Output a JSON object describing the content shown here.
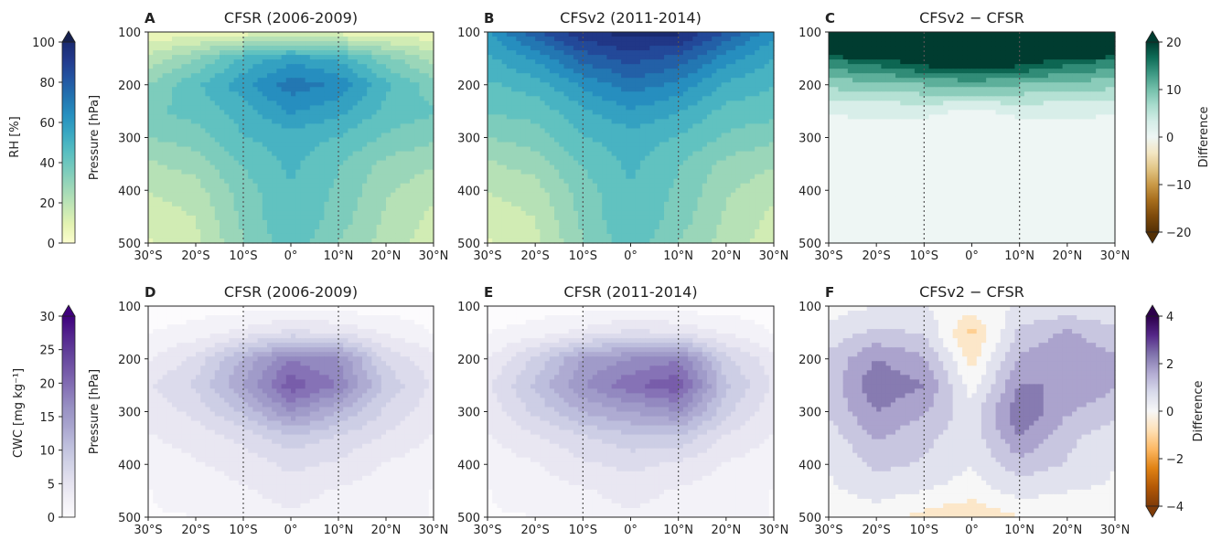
{
  "colors": {
    "rh": [
      "#fbfdce",
      "#e4f3b2",
      "#c2e6b5",
      "#9fd8b8",
      "#7acbbc",
      "#57bec1",
      "#39a8c2",
      "#2690c0",
      "#2273b0",
      "#2355a2",
      "#233a8d",
      "#1a2b70"
    ],
    "cwc": [
      "#fcfbfd",
      "#f1eff6",
      "#e3e1ef",
      "#d0d1e6",
      "#bcbddc",
      "#a8a4ce",
      "#9891c3",
      "#8774b7",
      "#7559a8",
      "#62409a",
      "#52238d",
      "#3f007d"
    ],
    "rh_diff": [
      "#543005",
      "#7d4a0b",
      "#a66d1c",
      "#c99947",
      "#e2c585",
      "#f3e6c3",
      "#eef6f4",
      "#d4ede7",
      "#a9dccd",
      "#75c0ab",
      "#3e9984",
      "#0f6d58",
      "#003c30"
    ],
    "cwc_diff": [
      "#7f3b08",
      "#b35806",
      "#e08214",
      "#fdb863",
      "#fee0b6",
      "#f7f7f7",
      "#d8daeb",
      "#b2abd2",
      "#8073ac",
      "#542788",
      "#2d004b"
    ]
  },
  "chart_data": [
    {
      "panel": "A",
      "type": "contour",
      "title": "CFSR (2006-2009)",
      "xlabel": "",
      "ylabel": "Pressure [hPa]",
      "x_ticks": [
        "30°S",
        "20°S",
        "10°S",
        "0°",
        "10°N",
        "20°N",
        "30°N"
      ],
      "y_ticks": [
        "100",
        "200",
        "300",
        "400",
        "500"
      ],
      "xlim": [
        -30,
        30
      ],
      "ylim": [
        500,
        100
      ],
      "levels": [
        0,
        100
      ],
      "cmap": "rh",
      "field": {
        "lats": [
          -30,
          -20,
          -10,
          0,
          10,
          20,
          30
        ],
        "pressures": [
          100,
          150,
          200,
          250,
          300,
          350,
          400,
          450,
          500
        ],
        "values": [
          [
            5,
            6,
            7,
            8,
            7,
            6,
            5
          ],
          [
            20,
            32,
            48,
            58,
            52,
            35,
            22
          ],
          [
            32,
            45,
            58,
            72,
            66,
            48,
            35
          ],
          [
            38,
            42,
            50,
            62,
            56,
            44,
            40
          ],
          [
            32,
            36,
            46,
            50,
            46,
            38,
            34
          ],
          [
            24,
            28,
            40,
            48,
            40,
            30,
            26
          ],
          [
            18,
            22,
            36,
            46,
            38,
            26,
            20
          ],
          [
            14,
            18,
            34,
            46,
            36,
            24,
            16
          ],
          [
            10,
            16,
            32,
            44,
            32,
            22,
            14
          ]
        ]
      }
    },
    {
      "panel": "B",
      "type": "contour",
      "title": "CFSv2 (2011-2014)",
      "xlabel": "",
      "ylabel": "",
      "x_ticks": [
        "30°S",
        "20°S",
        "10°S",
        "0°",
        "10°N",
        "20°N",
        "30°N"
      ],
      "y_ticks": [
        "100",
        "200",
        "300",
        "400",
        "500"
      ],
      "xlim": [
        -30,
        30
      ],
      "ylim": [
        500,
        100
      ],
      "levels": [
        0,
        100
      ],
      "cmap": "rh",
      "field": {
        "lats": [
          -30,
          -20,
          -10,
          0,
          10,
          20,
          30
        ],
        "pressures": [
          100,
          150,
          200,
          250,
          300,
          350,
          400,
          450,
          500
        ],
        "values": [
          [
            60,
            80,
            95,
            100,
            98,
            82,
            62
          ],
          [
            52,
            62,
            78,
            85,
            80,
            64,
            54
          ],
          [
            45,
            50,
            62,
            72,
            66,
            52,
            47
          ],
          [
            40,
            42,
            52,
            60,
            54,
            44,
            42
          ],
          [
            32,
            36,
            46,
            50,
            46,
            38,
            34
          ],
          [
            24,
            28,
            40,
            48,
            40,
            30,
            26
          ],
          [
            18,
            22,
            36,
            46,
            38,
            26,
            20
          ],
          [
            14,
            18,
            34,
            46,
            36,
            24,
            16
          ],
          [
            10,
            16,
            32,
            44,
            32,
            22,
            14
          ]
        ]
      }
    },
    {
      "panel": "C",
      "type": "contour",
      "title": "CFSv2 − CFSR",
      "xlabel": "",
      "ylabel": "",
      "x_ticks": [
        "30°S",
        "20°S",
        "10°S",
        "0°",
        "10°N",
        "20°N",
        "30°N"
      ],
      "y_ticks": [
        "100",
        "200",
        "300",
        "400",
        "500"
      ],
      "xlim": [
        -30,
        30
      ],
      "ylim": [
        500,
        100
      ],
      "levels": [
        -20,
        20
      ],
      "cmap": "rh_diff",
      "colorbar_label": "Difference",
      "colorbar_ticks": [
        "20",
        "10",
        "0",
        "−10",
        "−20"
      ],
      "field": {
        "lats": [
          -30,
          -20,
          -10,
          0,
          10,
          20,
          30
        ],
        "pressures": [
          100,
          150,
          200,
          250,
          300,
          350,
          400,
          450,
          500
        ],
        "values": [
          [
            60,
            70,
            80,
            85,
            82,
            72,
            62
          ],
          [
            16,
            18,
            22,
            24,
            22,
            18,
            16
          ],
          [
            8,
            9,
            10,
            11,
            10,
            9,
            8
          ],
          [
            2,
            2,
            2,
            1,
            2,
            2,
            2
          ],
          [
            -1,
            0,
            0,
            -1,
            0,
            0,
            -1
          ],
          [
            0,
            0,
            0,
            0,
            0,
            0,
            0
          ],
          [
            0,
            0,
            0,
            0,
            0,
            0,
            0
          ],
          [
            0,
            0,
            0,
            0,
            0,
            0,
            0
          ],
          [
            0,
            0,
            0,
            -1,
            0,
            0,
            0
          ]
        ]
      }
    },
    {
      "panel": "D",
      "type": "contour",
      "title": "CFSR (2006-2009)",
      "xlabel": "",
      "ylabel": "Pressure [hPa]",
      "x_ticks": [
        "30°S",
        "20°S",
        "10°S",
        "0°",
        "10°N",
        "20°N",
        "30°N"
      ],
      "y_ticks": [
        "100",
        "200",
        "300",
        "400",
        "500"
      ],
      "xlim": [
        -30,
        30
      ],
      "ylim": [
        500,
        100
      ],
      "levels": [
        0,
        30
      ],
      "cmap": "cwc",
      "field": {
        "lats": [
          -30,
          -20,
          -10,
          0,
          10,
          20,
          30
        ],
        "pressures": [
          100,
          150,
          200,
          250,
          300,
          350,
          400,
          450,
          500
        ],
        "values": [
          [
            0,
            0,
            0,
            0.5,
            0,
            0,
            0
          ],
          [
            1,
            2,
            4,
            6,
            5,
            3,
            1
          ],
          [
            3,
            6,
            12,
            18,
            16,
            7,
            4
          ],
          [
            5,
            8,
            14,
            22,
            18,
            9,
            5
          ],
          [
            4,
            6,
            10,
            16,
            12,
            7,
            4
          ],
          [
            3,
            4,
            6,
            9,
            7,
            5,
            3
          ],
          [
            2,
            3,
            4,
            6,
            5,
            3,
            2
          ],
          [
            1,
            2,
            3,
            4,
            3,
            2,
            1
          ],
          [
            1,
            1,
            2,
            3,
            2,
            2,
            1
          ]
        ]
      }
    },
    {
      "panel": "E",
      "type": "contour",
      "title": "CFSR (2011-2014)",
      "xlabel": "",
      "ylabel": "",
      "x_ticks": [
        "30°S",
        "20°S",
        "10°S",
        "0°",
        "10°N",
        "20°N",
        "30°N"
      ],
      "y_ticks": [
        "100",
        "200",
        "300",
        "400",
        "500"
      ],
      "xlim": [
        -30,
        30
      ],
      "ylim": [
        500,
        100
      ],
      "levels": [
        0,
        30
      ],
      "cmap": "cwc",
      "field": {
        "lats": [
          -30,
          -20,
          -10,
          0,
          10,
          20,
          30
        ],
        "pressures": [
          100,
          150,
          200,
          250,
          300,
          350,
          400,
          450,
          500
        ],
        "values": [
          [
            0,
            0,
            0,
            0.5,
            0,
            0,
            0
          ],
          [
            1,
            2,
            4,
            6,
            5,
            3,
            1
          ],
          [
            3,
            8,
            14,
            16,
            18,
            8,
            4
          ],
          [
            5,
            10,
            16,
            20,
            22,
            10,
            5
          ],
          [
            4,
            8,
            12,
            14,
            16,
            8,
            4
          ],
          [
            3,
            5,
            7,
            9,
            9,
            5,
            3
          ],
          [
            2,
            3,
            5,
            6,
            5,
            3,
            2
          ],
          [
            1,
            2,
            3,
            4,
            3,
            2,
            1
          ],
          [
            1,
            1,
            2,
            3,
            2,
            2,
            1
          ]
        ]
      }
    },
    {
      "panel": "F",
      "type": "contour",
      "title": "CFSv2 − CFSR",
      "xlabel": "",
      "ylabel": "",
      "x_ticks": [
        "30°S",
        "20°S",
        "10°S",
        "0°",
        "10°N",
        "20°N",
        "30°N"
      ],
      "y_ticks": [
        "100",
        "200",
        "300",
        "400",
        "500"
      ],
      "xlim": [
        -30,
        30
      ],
      "ylim": [
        500,
        100
      ],
      "levels": [
        -4,
        4
      ],
      "cmap": "cwc_diff",
      "colorbar_label": "Difference",
      "colorbar_ticks": [
        "4",
        "2",
        "0",
        "−2",
        "−4"
      ],
      "field": {
        "lats": [
          -30,
          -20,
          -10,
          0,
          10,
          20,
          30
        ],
        "pressures": [
          100,
          150,
          200,
          250,
          300,
          350,
          400,
          450,
          500
        ],
        "values": [
          [
            0,
            0.3,
            0.3,
            0,
            0.3,
            0.5,
            0.3
          ],
          [
            0.5,
            1,
            0.8,
            -1,
            1,
            1.5,
            1
          ],
          [
            1,
            2,
            1.5,
            -0.5,
            1.5,
            2,
            1.5
          ],
          [
            1,
            2.5,
            2,
            0,
            2,
            2,
            1.5
          ],
          [
            1,
            2,
            1.5,
            0.5,
            2.5,
            1.5,
            1
          ],
          [
            0.5,
            1.5,
            1,
            0.5,
            2,
            1,
            0.5
          ],
          [
            0.3,
            1,
            0.8,
            0.3,
            1.2,
            0.8,
            0.3
          ],
          [
            0.2,
            0.5,
            0.3,
            0,
            0.5,
            0.3,
            0.2
          ],
          [
            -0.3,
            0,
            -0.5,
            -0.8,
            -0.3,
            0,
            0
          ]
        ]
      }
    }
  ],
  "left_colorbars": [
    {
      "label": "RH [%]",
      "ticks": [
        "100",
        "80",
        "60",
        "40",
        "20",
        "0"
      ],
      "cmap": "rh"
    },
    {
      "label": "CWC [mg kg⁻¹]",
      "ticks": [
        "30",
        "25",
        "20",
        "15",
        "10",
        "5",
        "0"
      ],
      "cmap": "cwc"
    }
  ]
}
